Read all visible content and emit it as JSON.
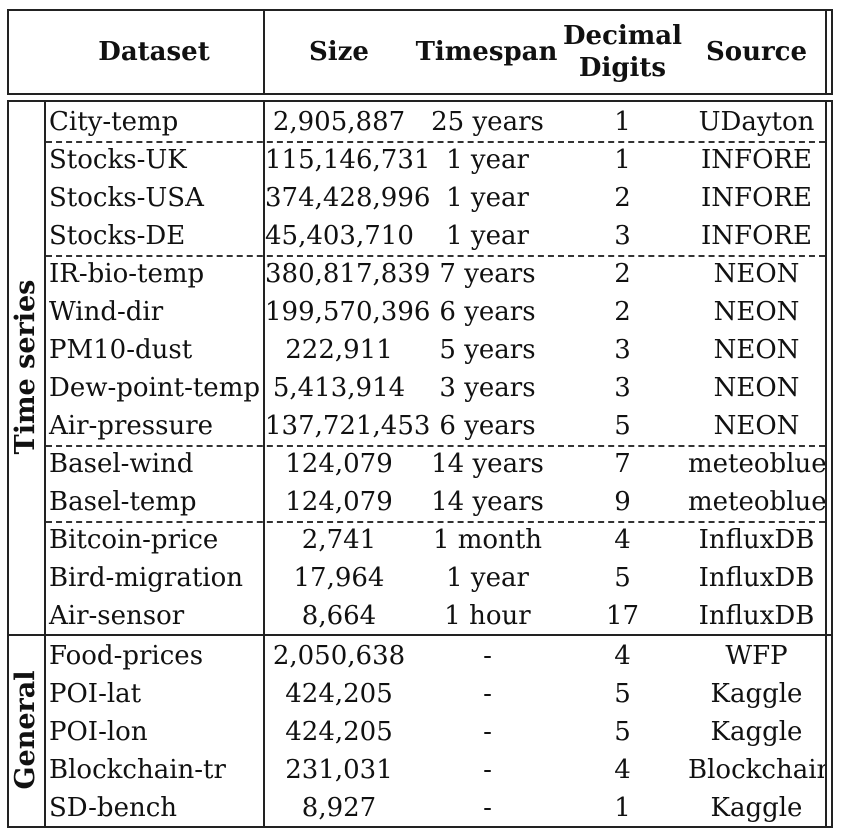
{
  "columns": [
    "Dataset",
    "Size",
    "Timespan",
    "Decimal\nDigits",
    "Source"
  ],
  "groups": [
    "Time series",
    "General"
  ],
  "rows": [
    {
      "dataset": "City-temp",
      "size": "2,905,887",
      "timespan": "25 years",
      "digits": "1",
      "source": "UDayton"
    },
    {
      "dataset": "Stocks-UK",
      "size": "115,146,731",
      "timespan": "1 year",
      "digits": "1",
      "source": "INFORE"
    },
    {
      "dataset": "Stocks-USA",
      "size": "374,428,996",
      "timespan": "1 year",
      "digits": "2",
      "source": "INFORE"
    },
    {
      "dataset": "Stocks-DE",
      "size": "45,403,710",
      "timespan": "1 year",
      "digits": "3",
      "source": "INFORE"
    },
    {
      "dataset": "IR-bio-temp",
      "size": "380,817,839",
      "timespan": "7 years",
      "digits": "2",
      "source": "NEON"
    },
    {
      "dataset": "Wind-dir",
      "size": "199,570,396",
      "timespan": "6 years",
      "digits": "2",
      "source": "NEON"
    },
    {
      "dataset": "PM10-dust",
      "size": "222,911",
      "timespan": "5 years",
      "digits": "3",
      "source": "NEON"
    },
    {
      "dataset": "Dew-point-temp",
      "size": "5,413,914",
      "timespan": "3 years",
      "digits": "3",
      "source": "NEON"
    },
    {
      "dataset": "Air-pressure",
      "size": "137,721,453",
      "timespan": "6 years",
      "digits": "5",
      "source": "NEON"
    },
    {
      "dataset": "Basel-wind",
      "size": "124,079",
      "timespan": "14 years",
      "digits": "7",
      "source": "meteoblue"
    },
    {
      "dataset": "Basel-temp",
      "size": "124,079",
      "timespan": "14 years",
      "digits": "9",
      "source": "meteoblue"
    },
    {
      "dataset": "Bitcoin-price",
      "size": "2,741",
      "timespan": "1 month",
      "digits": "4",
      "source": "InfluxDB"
    },
    {
      "dataset": "Bird-migration",
      "size": "17,964",
      "timespan": "1 year",
      "digits": "5",
      "source": "InfluxDB"
    },
    {
      "dataset": "Air-sensor",
      "size": "8,664",
      "timespan": "1 hour",
      "digits": "17",
      "source": "InfluxDB"
    },
    {
      "dataset": "Food-prices",
      "size": "2,050,638",
      "timespan": "-",
      "digits": "4",
      "source": "WFP"
    },
    {
      "dataset": "POI-lat",
      "size": "424,205",
      "timespan": "-",
      "digits": "5",
      "source": "Kaggle"
    },
    {
      "dataset": "POI-lon",
      "size": "424,205",
      "timespan": "-",
      "digits": "5",
      "source": "Kaggle"
    },
    {
      "dataset": "Blockchain-tr",
      "size": "231,031",
      "timespan": "-",
      "digits": "4",
      "source": "Blockchain"
    },
    {
      "dataset": "SD-bench",
      "size": "8,927",
      "timespan": "-",
      "digits": "1",
      "source": "Kaggle"
    }
  ]
}
